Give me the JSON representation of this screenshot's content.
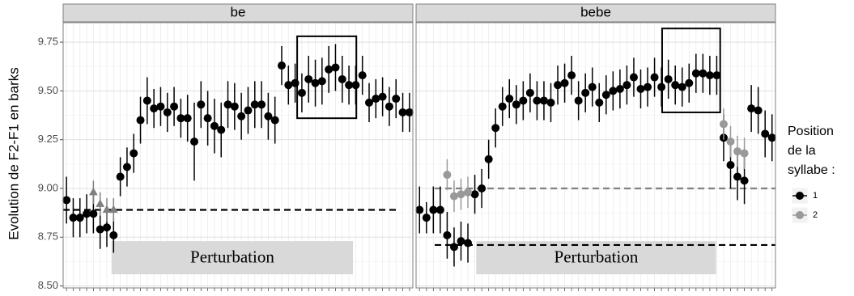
{
  "y_label": "Evolution de F2-F1 en barks",
  "legend_title": [
    "Position",
    "de la",
    "syllabe :"
  ],
  "chart_data": [
    {
      "type": "scatter",
      "title": "be",
      "x": [
        1,
        2,
        3,
        4,
        5,
        6,
        7,
        8,
        9,
        10,
        11,
        12,
        13,
        14,
        15,
        16,
        17,
        18,
        19,
        20,
        21,
        22,
        23,
        24,
        25,
        26,
        27,
        28,
        29,
        30,
        31,
        32,
        33,
        34,
        35,
        36,
        37,
        38,
        39,
        40,
        41,
        42,
        43,
        44,
        45,
        46,
        47,
        48,
        49,
        50,
        51,
        52
      ],
      "xlim": [
        0.5,
        52.5
      ],
      "ylim": [
        8.49,
        9.85
      ],
      "yticks": [
        {
          "value": 8.5,
          "label": "8.50"
        },
        8.75,
        {
          "value": 9,
          "label": "9.00"
        },
        9.25,
        {
          "value": 9.5,
          "label": "9.50"
        },
        9.75
      ],
      "series": [
        {
          "name": "1",
          "color": "#000000",
          "shape": "circle",
          "values": [
            8.94,
            8.85,
            8.85,
            8.87,
            8.87,
            8.79,
            8.8,
            8.76,
            9.06,
            9.11,
            9.18,
            9.35,
            9.45,
            9.41,
            9.42,
            9.39,
            9.42,
            9.36,
            9.36,
            9.24,
            9.43,
            9.36,
            9.32,
            9.3,
            9.43,
            9.42,
            9.37,
            9.4,
            9.43,
            9.43,
            9.37,
            9.35,
            9.63,
            9.53,
            9.54,
            9.49,
            9.56,
            9.54,
            9.55,
            9.61,
            9.62,
            9.56,
            9.53,
            9.53,
            9.58,
            9.44,
            9.46,
            9.47,
            9.42,
            9.46,
            9.39,
            9.39
          ],
          "errors": [
            0.12,
            0.1,
            0.1,
            0.1,
            0.1,
            0.1,
            0.1,
            0.09,
            0.1,
            0.1,
            0.1,
            0.12,
            0.12,
            0.1,
            0.1,
            0.1,
            0.1,
            0.1,
            0.12,
            0.2,
            0.12,
            0.14,
            0.14,
            0.14,
            0.12,
            0.12,
            0.12,
            0.12,
            0.12,
            0.12,
            0.12,
            0.12,
            0.1,
            0.1,
            0.1,
            0.1,
            0.12,
            0.12,
            0.12,
            0.12,
            0.12,
            0.12,
            0.1,
            0.1,
            0.1,
            0.1,
            0.1,
            0.1,
            0.1,
            0.1,
            0.1,
            0.1
          ]
        },
        {
          "name": "2",
          "color": "#808080",
          "shape": "triangle",
          "values": [
            null,
            null,
            null,
            null,
            8.98,
            8.92,
            8.89,
            8.89,
            null,
            null,
            null,
            null,
            null,
            null,
            null,
            null,
            null,
            null,
            null,
            null,
            null,
            null,
            null,
            null,
            null,
            null,
            null,
            null,
            null,
            null,
            null,
            null,
            null,
            null,
            null,
            null,
            null,
            null,
            null,
            null,
            null,
            null,
            null,
            null,
            null,
            null,
            null,
            null,
            null,
            null,
            null,
            null
          ],
          "errors": [
            null,
            null,
            null,
            null,
            0.06,
            0.06,
            0.06,
            0.06,
            null,
            null,
            null,
            null,
            null,
            null,
            null,
            null,
            null,
            null,
            null,
            null,
            null,
            null,
            null,
            null,
            null,
            null,
            null,
            null,
            null,
            null,
            null,
            null,
            null,
            null,
            null,
            null,
            null,
            null,
            null,
            null,
            null,
            null,
            null,
            null,
            null,
            null,
            null,
            null,
            null,
            null,
            null,
            null
          ]
        }
      ],
      "hlines": [
        {
          "y": 8.89,
          "x": [
            0.5,
            50.1
          ],
          "color": "#000000"
        }
      ],
      "box": {
        "x": [
          35.3,
          44.1
        ],
        "y": [
          9.36,
          9.78
        ]
      },
      "annotation": {
        "text": "Perturbation",
        "x": [
          7.7,
          43.6
        ],
        "y": [
          8.56,
          8.73
        ]
      }
    },
    {
      "type": "scatter",
      "title": "bebe",
      "x": [
        1,
        2,
        3,
        4,
        5,
        6,
        7,
        8,
        9,
        10,
        11,
        12,
        13,
        14,
        15,
        16,
        17,
        18,
        19,
        20,
        21,
        22,
        23,
        24,
        25,
        26,
        27,
        28,
        29,
        30,
        31,
        32,
        33,
        34,
        35,
        36,
        37,
        38,
        39,
        40,
        41,
        42,
        43,
        44,
        45,
        46,
        47,
        48,
        49,
        50,
        51,
        52
      ],
      "xlim": [
        0.5,
        52.5
      ],
      "ylim": [
        8.49,
        9.85
      ],
      "yticks": [
        {
          "value": 8.5,
          "label": "8.50"
        },
        8.75,
        {
          "value": 9,
          "label": "9.00"
        },
        9.25,
        {
          "value": 9.5,
          "label": "9.50"
        },
        9.75
      ],
      "series": [
        {
          "color": "#000000",
          "shape": "circle",
          "values": [
            8.89,
            8.85,
            8.89,
            8.89,
            8.76,
            8.7,
            8.73,
            8.72,
            8.97,
            9.0,
            9.15,
            9.31,
            9.42,
            9.46,
            9.43,
            9.45,
            9.49,
            9.45,
            9.45,
            9.44,
            9.53,
            9.54,
            9.58,
            9.45,
            9.49,
            9.52,
            9.44,
            9.48,
            9.5,
            9.51,
            9.53,
            9.57,
            9.51,
            9.52,
            9.57,
            9.52,
            9.56,
            9.53,
            9.52,
            9.54,
            9.59,
            9.59,
            9.58,
            9.58,
            9.26,
            9.12,
            9.06,
            9.04,
            9.41,
            9.4,
            9.28,
            9.26
          ],
          "errors": [
            0.12,
            0.08,
            0.12,
            0.12,
            0.12,
            0.1,
            0.1,
            0.1,
            0.1,
            0.1,
            0.1,
            0.1,
            0.1,
            0.1,
            0.1,
            0.1,
            0.1,
            0.1,
            0.1,
            0.1,
            0.1,
            0.1,
            0.1,
            0.1,
            0.1,
            0.1,
            0.1,
            0.1,
            0.1,
            0.1,
            0.1,
            0.1,
            0.1,
            0.1,
            0.1,
            0.1,
            0.1,
            0.1,
            0.1,
            0.1,
            0.1,
            0.1,
            0.1,
            0.1,
            0.12,
            0.12,
            0.12,
            0.12,
            0.12,
            0.12,
            0.12,
            0.12
          ]
        },
        {
          "color": "#999999",
          "shape": "circle",
          "values": [
            null,
            null,
            null,
            null,
            9.07,
            8.96,
            8.97,
            8.98,
            null,
            null,
            null,
            null,
            null,
            null,
            null,
            null,
            null,
            null,
            null,
            null,
            null,
            null,
            null,
            null,
            null,
            null,
            null,
            null,
            null,
            null,
            null,
            null,
            null,
            null,
            null,
            null,
            null,
            null,
            null,
            null,
            null,
            null,
            null,
            null,
            9.33,
            9.24,
            9.19,
            9.18,
            null,
            null,
            null,
            null
          ],
          "errors": [
            null,
            null,
            null,
            null,
            0.08,
            0.08,
            0.08,
            0.08,
            null,
            null,
            null,
            null,
            null,
            null,
            null,
            null,
            null,
            null,
            null,
            null,
            null,
            null,
            null,
            null,
            null,
            null,
            null,
            null,
            null,
            null,
            null,
            null,
            null,
            null,
            null,
            null,
            null,
            null,
            null,
            null,
            null,
            null,
            null,
            null,
            0.08,
            0.08,
            0.08,
            0.08,
            null,
            null,
            null,
            null
          ]
        }
      ],
      "hlines": [
        {
          "y": 8.71,
          "x": [
            3.2,
            52.5
          ],
          "color": "#000000"
        },
        {
          "y": 9.0,
          "x": [
            3.2,
            52.5
          ],
          "color": "#808080"
        }
      ],
      "box": {
        "x": [
          36.1,
          44.5
        ],
        "y": [
          9.39,
          9.82
        ]
      },
      "annotation": {
        "text": "Perturbation",
        "x": [
          9.2,
          43.9
        ],
        "y": [
          8.56,
          8.73
        ]
      }
    }
  ]
}
